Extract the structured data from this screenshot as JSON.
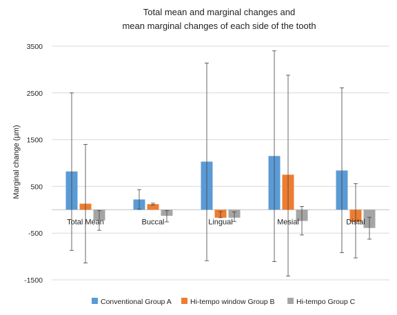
{
  "chart_data": {
    "type": "bar",
    "title_lines": [
      "Total mean and marginal changes and",
      "mean marginal changes of each side of the tooth"
    ],
    "ylabel": "Marginal change (µm)",
    "xlabel": "",
    "ylim": [
      -1500,
      3500
    ],
    "yticks": [
      3500,
      2500,
      1500,
      500,
      -500,
      -1500
    ],
    "grid": true,
    "legend_position": "bottom",
    "categories": [
      "Total Mean",
      "Buccal",
      "Lingual",
      "Mesial",
      "Distal"
    ],
    "series": [
      {
        "name": "Conventional Group A",
        "color": "#5b9bd5",
        "values": [
          820,
          220,
          1030,
          1150,
          840
        ],
        "error_low": [
          -870,
          10,
          -1090,
          -1110,
          -920
        ],
        "error_high": [
          2500,
          430,
          3140,
          3400,
          2610
        ]
      },
      {
        "name": "Hi-tempo window Group B",
        "color": "#ed7d31",
        "values": [
          130,
          120,
          -170,
          750,
          -260
        ],
        "error_low": [
          -1140,
          100,
          -170,
          -1420,
          -1030
        ],
        "error_high": [
          1400,
          140,
          -40,
          2880,
          560
        ]
      },
      {
        "name": "Hi-tempo Group C",
        "color": "#a5a5a5",
        "values": [
          -230,
          -130,
          -170,
          -240,
          -390
        ],
        "error_low": [
          -440,
          -260,
          -250,
          -540,
          -630
        ],
        "error_high": [
          -20,
          -20,
          -50,
          70,
          -160
        ]
      }
    ]
  }
}
